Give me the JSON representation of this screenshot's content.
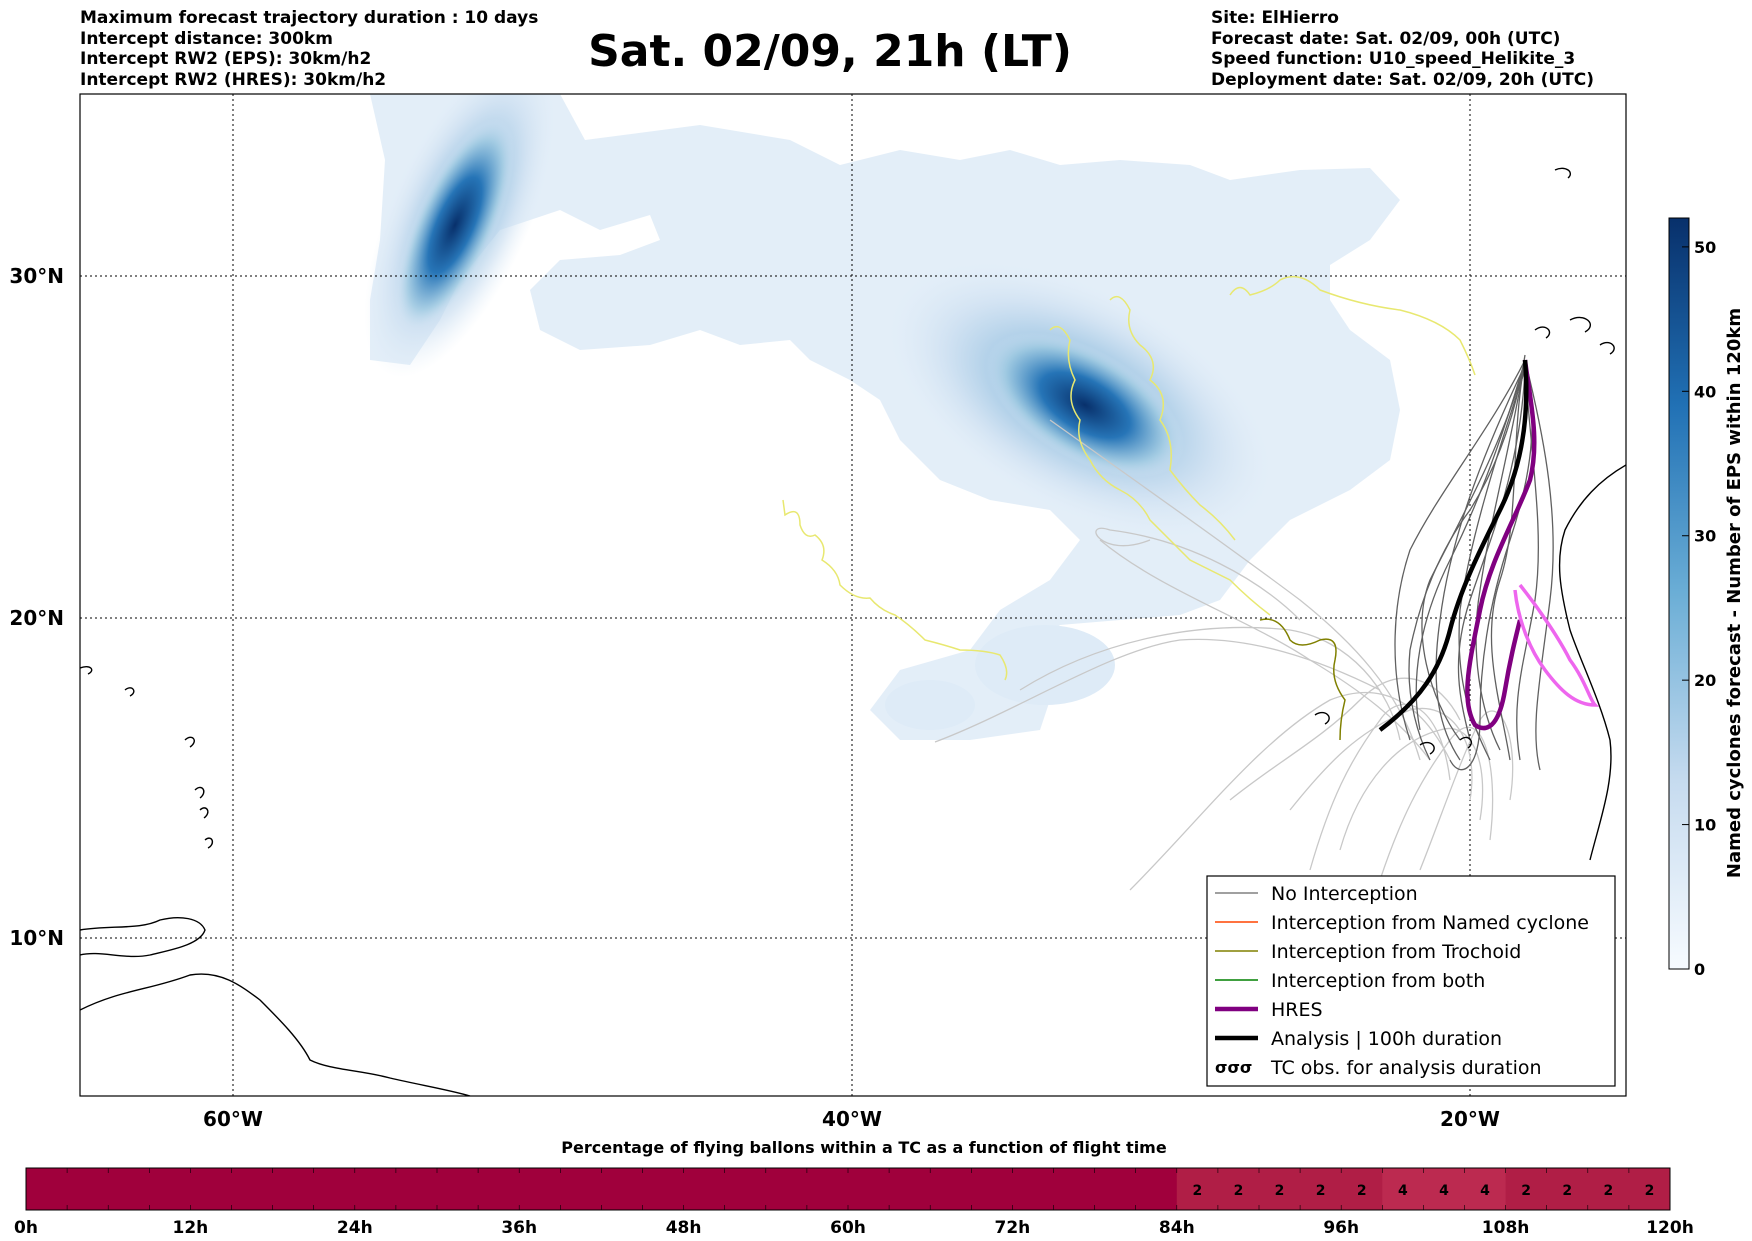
{
  "header": {
    "left_lines": [
      "Maximum forecast trajectory duration : 10 days",
      "Intercept distance: 300km",
      "Intercept RW2 (EPS):  30km/h2",
      "Intercept RW2 (HRES): 30km/h2"
    ],
    "title": "Sat. 02/09, 21h (LT)",
    "right_lines": [
      "Site: ElHierro",
      "Forecast date: Sat. 02/09, 00h (UTC)",
      "Speed function: U10_speed_Helikite_3",
      "Deployment date: Sat. 02/09, 20h (UTC)"
    ]
  },
  "map": {
    "lon_ticks": [
      "60°W",
      "40°W",
      "20°W"
    ],
    "lat_ticks": [
      "30°N",
      "20°N",
      "10°N"
    ],
    "grid": true,
    "density_color": "#08306b"
  },
  "legend": {
    "items": [
      {
        "label": "No Interception",
        "color": "#808080",
        "style": "thin"
      },
      {
        "label": "Interception from Named cyclone",
        "color": "#ff4500",
        "style": "thin"
      },
      {
        "label": "Interception from Trochoid",
        "color": "#808000",
        "style": "thin"
      },
      {
        "label": "Interception from both",
        "color": "#008000",
        "style": "thin"
      },
      {
        "label": "HRES",
        "color": "#800080",
        "style": "thick"
      },
      {
        "label": "Analysis | 100h duration",
        "color": "#000000",
        "style": "thick"
      },
      {
        "label": "TC obs. for analysis duration",
        "color": "#000000",
        "style": "symbol"
      }
    ]
  },
  "colorbar": {
    "label": "Named cyclones forecast - Number of EPS within 120km",
    "ticks": [
      "0",
      "10",
      "20",
      "30",
      "40",
      "50"
    ],
    "min": 0,
    "max": 52,
    "color_low": "#f7fbff",
    "color_high": "#08306b"
  },
  "bottom_bar": {
    "title": "Percentage of flying ballons within a TC as a function of flight time",
    "time_labels": [
      "0h",
      "12h",
      "24h",
      "36h",
      "48h",
      "60h",
      "72h",
      "84h",
      "96h",
      "108h",
      "120h"
    ],
    "cell_values": [
      "",
      "",
      "",
      "",
      "",
      "",
      "",
      "",
      "",
      "",
      "",
      "",
      "",
      "",
      "",
      "",
      "",
      "",
      "",
      "",
      "",
      "",
      "",
      "",
      "",
      "",
      "",
      "",
      "2",
      "2",
      "2",
      "2",
      "2",
      "4",
      "4",
      "4",
      "2",
      "2",
      "2",
      "2"
    ],
    "color_zero": "#a0003c",
    "color_low": "#b01e46"
  }
}
